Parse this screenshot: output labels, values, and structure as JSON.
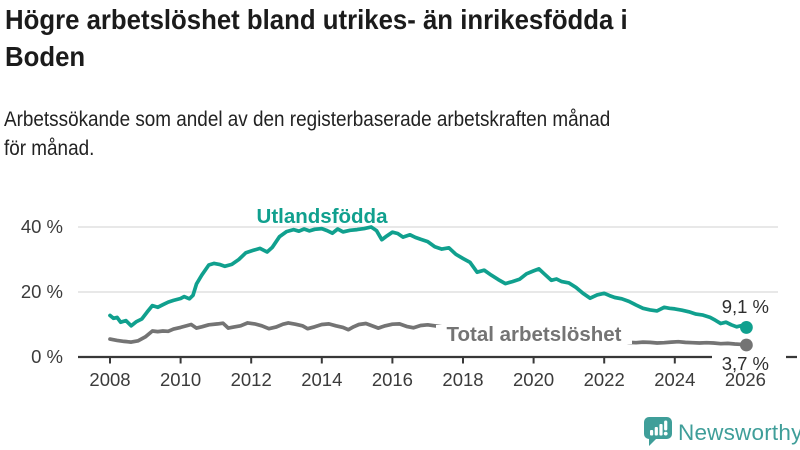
{
  "header": {
    "title_lines": [
      "Högre arbetslöshet bland utrikes- än inrikesfödda i",
      "Boden"
    ],
    "subtitle_lines": [
      "Arbetssökande som andel av den registerbaserade arbetskraften månad",
      "för månad."
    ]
  },
  "footer": {
    "brand": "Newsworthy",
    "brand_color": "#3f9e99",
    "icon": "newsworthy-chart-bubble-icon"
  },
  "chart_data": {
    "type": "line",
    "title": "Högre arbetslöshet bland utrikes- än inrikesfödda i Boden",
    "subtitle": "Arbetssökande som andel av den registerbaserade arbetskraften månad för månad.",
    "unit": "%",
    "grid": "horizontal",
    "x_axis": {
      "ticks": [
        2008,
        2010,
        2012,
        2014,
        2016,
        2018,
        2020,
        2022,
        2024,
        2026
      ],
      "range": [
        2008,
        2026.8
      ]
    },
    "y_axis": {
      "ticks": [
        {
          "value": 0,
          "label": "0 %"
        },
        {
          "value": 20,
          "label": "20 %"
        },
        {
          "value": 40,
          "label": "40 %"
        }
      ],
      "gridlines": [
        20,
        40
      ],
      "range": [
        0,
        43
      ]
    },
    "colors": {
      "grid": "#dadada",
      "axis": "#383838",
      "tick_label": "#3b3b3b",
      "value_label": "#2e2e2e"
    },
    "series": [
      {
        "id": "utlandsfodda",
        "name": "Utlandsfödda",
        "color": "#10a08e",
        "end_label": "9,1 %",
        "end_value": 9.1,
        "points": [
          [
            2008.0,
            12.8
          ],
          [
            2008.1,
            11.9
          ],
          [
            2008.2,
            12.2
          ],
          [
            2008.3,
            10.7
          ],
          [
            2008.45,
            11.2
          ],
          [
            2008.6,
            9.6
          ],
          [
            2008.75,
            10.9
          ],
          [
            2008.9,
            11.7
          ],
          [
            2009.05,
            13.8
          ],
          [
            2009.2,
            15.8
          ],
          [
            2009.35,
            15.3
          ],
          [
            2009.5,
            16.1
          ],
          [
            2009.65,
            16.9
          ],
          [
            2009.8,
            17.4
          ],
          [
            2010.0,
            18.0
          ],
          [
            2010.1,
            18.6
          ],
          [
            2010.25,
            17.9
          ],
          [
            2010.35,
            19.0
          ],
          [
            2010.45,
            22.5
          ],
          [
            2010.6,
            25.2
          ],
          [
            2010.8,
            28.3
          ],
          [
            2010.95,
            28.8
          ],
          [
            2011.1,
            28.5
          ],
          [
            2011.25,
            27.9
          ],
          [
            2011.45,
            28.5
          ],
          [
            2011.65,
            30.0
          ],
          [
            2011.85,
            32.1
          ],
          [
            2012.05,
            32.8
          ],
          [
            2012.25,
            33.4
          ],
          [
            2012.45,
            32.3
          ],
          [
            2012.6,
            33.8
          ],
          [
            2012.8,
            37.0
          ],
          [
            2013.0,
            38.6
          ],
          [
            2013.2,
            39.2
          ],
          [
            2013.35,
            38.7
          ],
          [
            2013.5,
            39.4
          ],
          [
            2013.65,
            38.8
          ],
          [
            2013.8,
            39.3
          ],
          [
            2014.0,
            39.5
          ],
          [
            2014.15,
            38.9
          ],
          [
            2014.3,
            38.1
          ],
          [
            2014.45,
            39.4
          ],
          [
            2014.6,
            38.5
          ],
          [
            2014.8,
            39.0
          ],
          [
            2015.0,
            39.2
          ],
          [
            2015.2,
            39.5
          ],
          [
            2015.4,
            40.0
          ],
          [
            2015.55,
            38.9
          ],
          [
            2015.7,
            36.1
          ],
          [
            2015.85,
            37.3
          ],
          [
            2016.0,
            38.4
          ],
          [
            2016.15,
            38.0
          ],
          [
            2016.3,
            36.9
          ],
          [
            2016.5,
            37.6
          ],
          [
            2016.65,
            36.8
          ],
          [
            2016.8,
            36.2
          ],
          [
            2017.0,
            35.5
          ],
          [
            2017.2,
            33.9
          ],
          [
            2017.4,
            33.2
          ],
          [
            2017.6,
            33.6
          ],
          [
            2017.8,
            31.6
          ],
          [
            2018.0,
            30.3
          ],
          [
            2018.2,
            29.1
          ],
          [
            2018.4,
            26.1
          ],
          [
            2018.6,
            26.7
          ],
          [
            2018.8,
            25.2
          ],
          [
            2019.0,
            23.8
          ],
          [
            2019.2,
            22.6
          ],
          [
            2019.4,
            23.2
          ],
          [
            2019.6,
            23.9
          ],
          [
            2019.8,
            25.6
          ],
          [
            2020.0,
            26.5
          ],
          [
            2020.15,
            27.1
          ],
          [
            2020.3,
            25.6
          ],
          [
            2020.5,
            23.6
          ],
          [
            2020.65,
            24.0
          ],
          [
            2020.8,
            23.2
          ],
          [
            2021.0,
            22.8
          ],
          [
            2021.2,
            21.4
          ],
          [
            2021.4,
            19.6
          ],
          [
            2021.6,
            18.1
          ],
          [
            2021.8,
            19.1
          ],
          [
            2022.0,
            19.6
          ],
          [
            2022.15,
            18.9
          ],
          [
            2022.3,
            18.3
          ],
          [
            2022.5,
            17.9
          ],
          [
            2022.7,
            17.1
          ],
          [
            2022.9,
            16.0
          ],
          [
            2023.1,
            15.0
          ],
          [
            2023.3,
            14.5
          ],
          [
            2023.5,
            14.2
          ],
          [
            2023.7,
            15.3
          ],
          [
            2023.85,
            15.0
          ],
          [
            2024.0,
            14.8
          ],
          [
            2024.2,
            14.4
          ],
          [
            2024.4,
            13.9
          ],
          [
            2024.6,
            13.2
          ],
          [
            2024.8,
            12.9
          ],
          [
            2025.0,
            12.2
          ],
          [
            2025.15,
            11.3
          ],
          [
            2025.3,
            10.3
          ],
          [
            2025.45,
            10.7
          ],
          [
            2025.6,
            9.9
          ],
          [
            2025.75,
            9.3
          ],
          [
            2025.9,
            9.7
          ],
          [
            2026.0,
            9.1
          ]
        ]
      },
      {
        "id": "total-arbetsloshet",
        "name": "Total arbetslöshet",
        "color": "#747474",
        "end_label": "3,7 %",
        "end_value": 3.7,
        "points": [
          [
            2008.0,
            5.5
          ],
          [
            2008.2,
            5.1
          ],
          [
            2008.4,
            4.8
          ],
          [
            2008.6,
            4.6
          ],
          [
            2008.8,
            5.0
          ],
          [
            2009.0,
            6.2
          ],
          [
            2009.2,
            8.0
          ],
          [
            2009.35,
            7.8
          ],
          [
            2009.5,
            8.0
          ],
          [
            2009.65,
            7.9
          ],
          [
            2009.8,
            8.6
          ],
          [
            2010.0,
            9.1
          ],
          [
            2010.3,
            10.0
          ],
          [
            2010.45,
            8.9
          ],
          [
            2010.6,
            9.3
          ],
          [
            2010.8,
            9.9
          ],
          [
            2011.05,
            10.2
          ],
          [
            2011.2,
            10.4
          ],
          [
            2011.35,
            8.9
          ],
          [
            2011.5,
            9.2
          ],
          [
            2011.7,
            9.6
          ],
          [
            2011.9,
            10.5
          ],
          [
            2012.1,
            10.2
          ],
          [
            2012.3,
            9.6
          ],
          [
            2012.5,
            8.7
          ],
          [
            2012.7,
            9.2
          ],
          [
            2012.9,
            10.1
          ],
          [
            2013.05,
            10.5
          ],
          [
            2013.25,
            10.1
          ],
          [
            2013.45,
            9.6
          ],
          [
            2013.6,
            8.7
          ],
          [
            2013.8,
            9.3
          ],
          [
            2014.0,
            10.0
          ],
          [
            2014.2,
            10.2
          ],
          [
            2014.4,
            9.6
          ],
          [
            2014.6,
            9.1
          ],
          [
            2014.75,
            8.4
          ],
          [
            2014.9,
            9.3
          ],
          [
            2015.05,
            10.0
          ],
          [
            2015.25,
            10.3
          ],
          [
            2015.45,
            9.5
          ],
          [
            2015.6,
            8.9
          ],
          [
            2015.8,
            9.6
          ],
          [
            2016.0,
            10.1
          ],
          [
            2016.2,
            10.2
          ],
          [
            2016.4,
            9.4
          ],
          [
            2016.6,
            9.0
          ],
          [
            2016.8,
            9.7
          ],
          [
            2017.0,
            9.9
          ],
          [
            2017.2,
            9.6
          ],
          [
            2017.45,
            9.2
          ],
          [
            2017.7,
            8.9
          ],
          [
            2018.0,
            8.6
          ],
          [
            2018.35,
            8.1
          ],
          [
            2018.7,
            7.7
          ],
          [
            2019.0,
            7.4
          ],
          [
            2019.35,
            7.1
          ],
          [
            2019.7,
            7.2
          ],
          [
            2020.0,
            7.8
          ],
          [
            2020.3,
            8.5
          ],
          [
            2020.6,
            8.2
          ],
          [
            2020.9,
            7.7
          ],
          [
            2021.2,
            7.1
          ],
          [
            2021.5,
            6.5
          ],
          [
            2021.8,
            6.0
          ],
          [
            2022.1,
            5.4
          ],
          [
            2022.4,
            4.9
          ],
          [
            2022.7,
            4.5
          ],
          [
            2022.9,
            4.4
          ],
          [
            2023.1,
            4.6
          ],
          [
            2023.3,
            4.5
          ],
          [
            2023.5,
            4.3
          ],
          [
            2023.7,
            4.4
          ],
          [
            2023.9,
            4.6
          ],
          [
            2024.1,
            4.7
          ],
          [
            2024.3,
            4.5
          ],
          [
            2024.5,
            4.4
          ],
          [
            2024.7,
            4.3
          ],
          [
            2024.9,
            4.4
          ],
          [
            2025.1,
            4.3
          ],
          [
            2025.3,
            4.1
          ],
          [
            2025.5,
            4.2
          ],
          [
            2025.7,
            4.0
          ],
          [
            2025.85,
            3.9
          ],
          [
            2026.0,
            3.7
          ]
        ]
      }
    ]
  }
}
